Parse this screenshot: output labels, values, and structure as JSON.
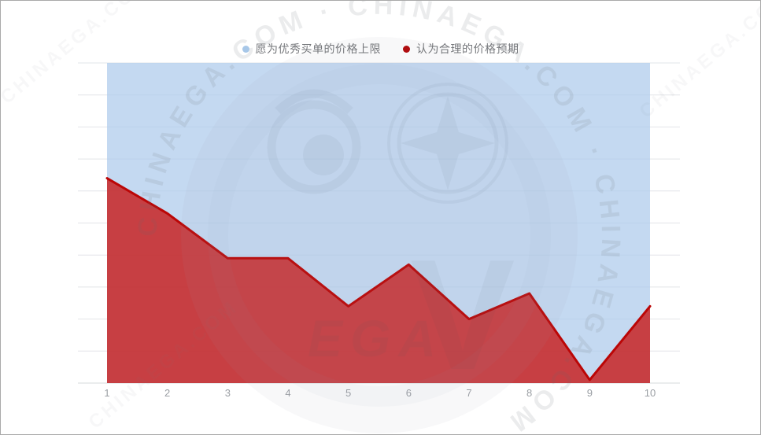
{
  "legend": [
    {
      "key": "willing_ceiling",
      "label": "愿为优秀买单的价格上限",
      "color": "#a7c7e8"
    },
    {
      "key": "reasonable_expectation",
      "label": "认为合理的价格预期",
      "color": "#b00d10"
    }
  ],
  "watermark": {
    "brand": "CHINAEGA.COM",
    "arc_text": "CHINAEGA.COM · CHINAEGA.COM · CHINAEGA.COM ·",
    "center_monogram": "EGA",
    "center_letter": "V"
  },
  "chart_data": {
    "type": "area",
    "categories": [
      "1",
      "2",
      "3",
      "4",
      "5",
      "6",
      "7",
      "8",
      "9",
      "10"
    ],
    "series": [
      {
        "key": "willing_ceiling",
        "name": "愿为优秀买单的价格上限",
        "values": [
          10,
          10,
          10,
          10,
          10,
          10,
          10,
          10,
          10,
          10
        ],
        "fill": "#adcbec",
        "fill_opacity": 0.72,
        "stroke": null
      },
      {
        "key": "reasonable_expectation",
        "name": "认为合理的价格预期",
        "values": [
          6.4,
          5.3,
          3.9,
          3.9,
          2.4,
          3.7,
          2.0,
          2.8,
          0.1,
          2.4
        ],
        "fill": "#c81d1c",
        "fill_opacity": 0.82,
        "stroke": "#bb0606"
      }
    ],
    "xlabel": "",
    "ylabel": "",
    "ylim": [
      0,
      10
    ],
    "y_gridlines": 11,
    "grid": true,
    "legend_position": "top-center",
    "colors": {
      "grid": "#e2e4e8",
      "axis": "#d6d8db",
      "tick": "#9b9fa4"
    }
  }
}
